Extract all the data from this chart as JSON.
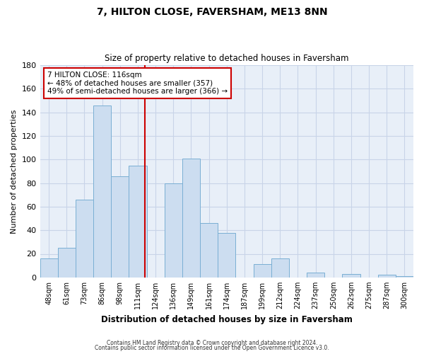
{
  "title": "7, HILTON CLOSE, FAVERSHAM, ME13 8NN",
  "subtitle": "Size of property relative to detached houses in Faversham",
  "xlabel": "Distribution of detached houses by size in Faversham",
  "ylabel": "Number of detached properties",
  "bar_labels": [
    "48sqm",
    "61sqm",
    "73sqm",
    "86sqm",
    "98sqm",
    "111sqm",
    "124sqm",
    "136sqm",
    "149sqm",
    "161sqm",
    "174sqm",
    "187sqm",
    "199sqm",
    "212sqm",
    "224sqm",
    "237sqm",
    "250sqm",
    "262sqm",
    "275sqm",
    "287sqm",
    "300sqm"
  ],
  "bar_values": [
    16,
    25,
    66,
    146,
    86,
    95,
    0,
    80,
    101,
    46,
    38,
    0,
    11,
    16,
    0,
    4,
    0,
    3,
    0,
    2,
    1
  ],
  "bar_color": "#ccddf0",
  "bar_edge_color": "#7aafd4",
  "vline_color": "#cc0000",
  "ylim": [
    0,
    180
  ],
  "yticks": [
    0,
    20,
    40,
    60,
    80,
    100,
    120,
    140,
    160,
    180
  ],
  "annotation_title": "7 HILTON CLOSE: 116sqm",
  "annotation_line1": "← 48% of detached houses are smaller (357)",
  "annotation_line2": "49% of semi-detached houses are larger (366) →",
  "annotation_box_color": "#ffffff",
  "annotation_box_edge": "#cc0000",
  "footnote1": "Contains HM Land Registry data © Crown copyright and database right 2024.",
  "footnote2": "Contains public sector information licensed under the Open Government Licence v3.0.",
  "background_color": "#ffffff",
  "plot_bg_color": "#e8eff8",
  "grid_color": "#c8d4e8"
}
